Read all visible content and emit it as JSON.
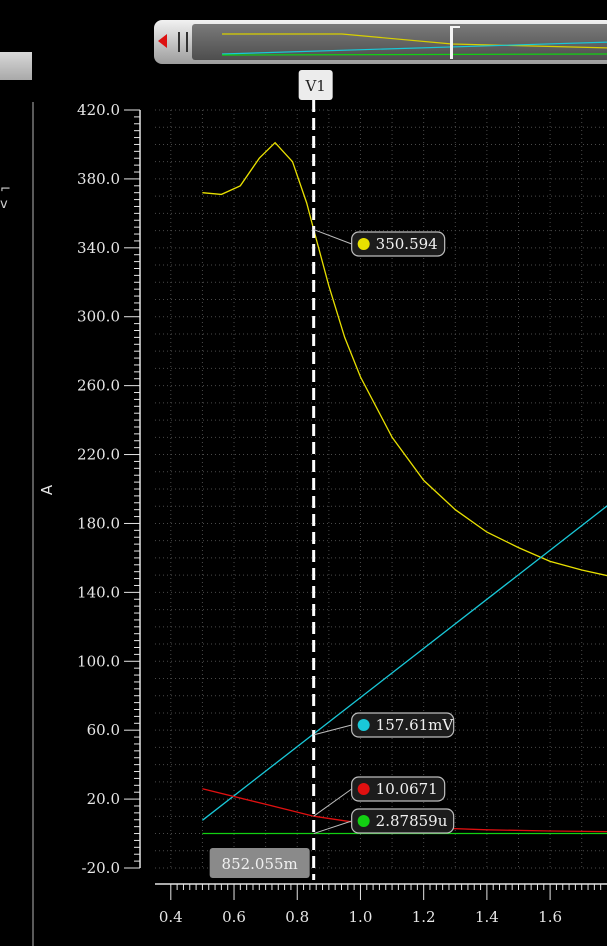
{
  "cursor": {
    "label": "V1",
    "x_readout": "852.055m",
    "x_value": 0.852
  },
  "chart_data": {
    "type": "line",
    "ylabel": "A",
    "xlabel": "",
    "xlim": [
      0.35,
      1.78
    ],
    "ylim": [
      -20.0,
      420.0
    ],
    "yticks": [
      "420.0",
      "380.0",
      "340.0",
      "300.0",
      "260.0",
      "220.0",
      "180.0",
      "140.0",
      "100.0",
      "60.0",
      "20.0",
      "-20.0"
    ],
    "xticks": [
      "0.4",
      "0.6",
      "0.8",
      "1.0",
      "1.2",
      "1.4",
      "1.6"
    ],
    "grid": true,
    "series": [
      {
        "color": "#e8e000",
        "x": [
          0.5,
          0.56,
          0.62,
          0.68,
          0.73,
          0.785,
          0.83,
          0.852,
          0.9,
          0.95,
          1.0,
          1.1,
          1.2,
          1.3,
          1.4,
          1.5,
          1.6,
          1.7,
          1.8
        ],
        "y": [
          372,
          371,
          376,
          392,
          401,
          390,
          366,
          350.6,
          318,
          288,
          265,
          230,
          205,
          188,
          175,
          166,
          158,
          153,
          149
        ]
      },
      {
        "color": "#19c8d8",
        "x": [
          0.5,
          1.8
        ],
        "y": [
          7.7,
          193
        ]
      },
      {
        "color": "#e01010",
        "x": [
          0.5,
          0.7,
          0.852,
          1.0,
          1.2,
          1.4,
          1.6,
          1.8
        ],
        "y": [
          26,
          17,
          10.07,
          6,
          3.5,
          2.2,
          1.5,
          1.1
        ]
      },
      {
        "color": "#12d012",
        "x": [
          0.5,
          1.8
        ],
        "y": [
          0.0,
          0.0
        ]
      }
    ],
    "markers": [
      {
        "label": "350.594",
        "color": "#e8e000",
        "x": 0.852,
        "y": 350.594
      },
      {
        "label": "157.61mV",
        "color": "#19c8d8",
        "x": 0.852,
        "y": 57.3
      },
      {
        "label": "10.0671",
        "color": "#e01010",
        "x": 0.852,
        "y": 10.0671
      },
      {
        "label": "2.87859u",
        "color": "#12d012",
        "x": 0.852,
        "y": 0.0
      }
    ]
  }
}
